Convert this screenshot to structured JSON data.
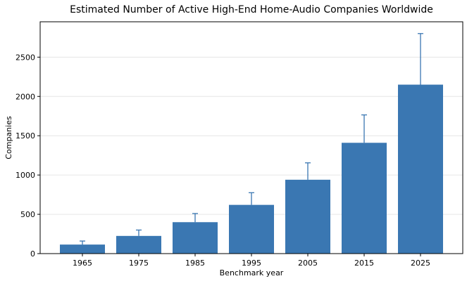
{
  "chart_data": {
    "type": "bar",
    "title": "Estimated Number of Active High-End Home-Audio Companies Worldwide",
    "xlabel": "Benchmark year",
    "ylabel": "Companies",
    "categories": [
      "1965",
      "1975",
      "1985",
      "1995",
      "2005",
      "2015",
      "2025"
    ],
    "values": [
      115,
      225,
      400,
      620,
      940,
      1410,
      2150
    ],
    "error_upper": [
      160,
      300,
      510,
      775,
      1155,
      1765,
      2800
    ],
    "ylim": [
      0,
      2950
    ],
    "yticks": [
      0,
      500,
      1000,
      1500,
      2000,
      2500
    ],
    "grid": "horizontal",
    "colors": {
      "bar": "#3a77b2",
      "error": "#3a77b2"
    }
  }
}
